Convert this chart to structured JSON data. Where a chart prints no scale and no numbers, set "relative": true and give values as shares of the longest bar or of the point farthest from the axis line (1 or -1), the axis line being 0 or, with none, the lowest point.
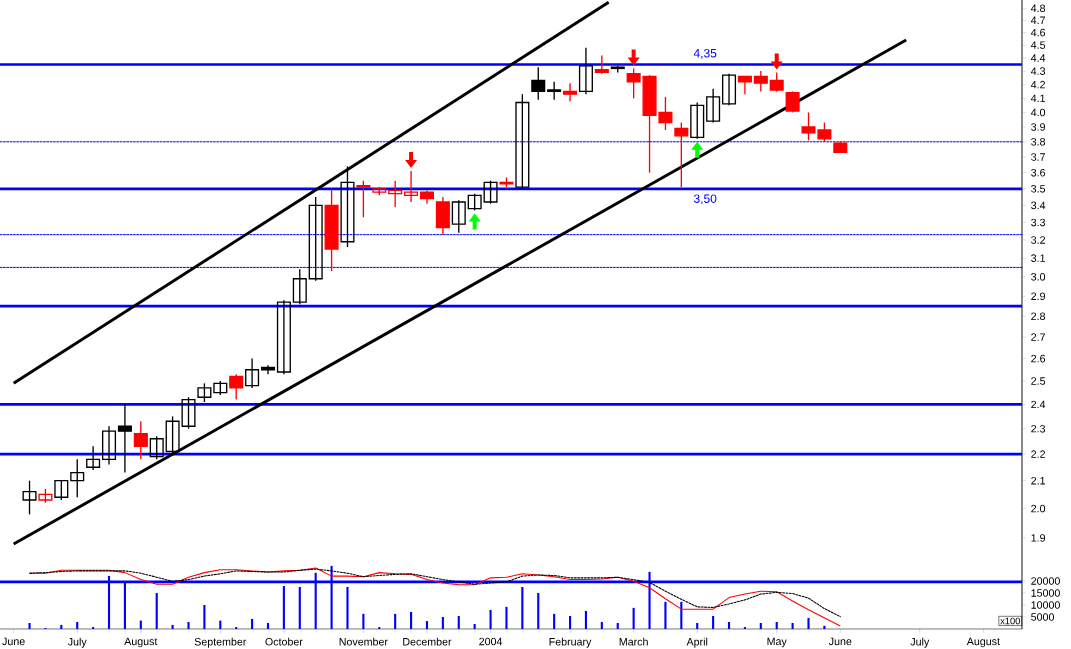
{
  "chart_data": [
    {
      "type": "candlestick",
      "x": [
        "2003-06-13",
        "2003-06-20",
        "2003-06-27",
        "2003-07-04",
        "2003-07-11",
        "2003-07-18",
        "2003-07-25",
        "2003-08-01",
        "2003-08-08",
        "2003-08-15",
        "2003-08-22",
        "2003-08-29",
        "2003-09-05",
        "2003-09-12",
        "2003-09-19",
        "2003-09-26",
        "2003-10-03",
        "2003-10-10",
        "2003-10-17",
        "2003-10-24",
        "2003-10-31",
        "2003-11-07",
        "2003-11-14",
        "2003-11-21",
        "2003-11-28",
        "2003-12-05",
        "2003-12-12",
        "2003-12-19",
        "2003-12-26",
        "2004-01-02",
        "2004-01-09",
        "2004-01-16",
        "2004-01-23",
        "2004-01-30",
        "2004-02-06",
        "2004-02-13",
        "2004-02-20",
        "2004-02-27",
        "2004-03-05",
        "2004-03-12",
        "2004-03-19",
        "2004-03-26",
        "2004-04-02",
        "2004-04-09",
        "2004-04-16",
        "2004-04-23",
        "2004-04-30",
        "2004-05-07",
        "2004-05-14",
        "2004-05-21",
        "2004-05-28",
        "2004-06-04"
      ],
      "ohlc": [
        [
          2.03,
          2.1,
          1.98,
          2.06
        ],
        [
          2.03,
          2.07,
          2.02,
          2.05
        ],
        [
          2.04,
          2.1,
          2.03,
          2.1
        ],
        [
          2.1,
          2.18,
          2.04,
          2.13
        ],
        [
          2.15,
          2.23,
          2.14,
          2.18
        ],
        [
          2.18,
          2.31,
          2.16,
          2.29
        ],
        [
          2.31,
          2.4,
          2.13,
          2.29
        ],
        [
          2.28,
          2.33,
          2.18,
          2.23
        ],
        [
          2.19,
          2.27,
          2.18,
          2.26
        ],
        [
          2.21,
          2.35,
          2.2,
          2.33
        ],
        [
          2.31,
          2.43,
          2.3,
          2.42
        ],
        [
          2.43,
          2.49,
          2.41,
          2.47
        ],
        [
          2.45,
          2.5,
          2.44,
          2.49
        ],
        [
          2.52,
          2.53,
          2.42,
          2.47
        ],
        [
          2.48,
          2.6,
          2.47,
          2.55
        ],
        [
          2.56,
          2.57,
          2.53,
          2.55
        ],
        [
          2.54,
          2.88,
          2.53,
          2.87
        ],
        [
          2.87,
          3.04,
          2.86,
          2.99
        ],
        [
          2.99,
          3.45,
          2.98,
          3.4
        ],
        [
          3.4,
          3.5,
          3.03,
          3.15
        ],
        [
          3.19,
          3.64,
          3.16,
          3.54
        ],
        [
          3.52,
          3.55,
          3.33,
          3.51
        ],
        [
          3.48,
          3.51,
          3.46,
          3.5
        ],
        [
          3.47,
          3.55,
          3.39,
          3.49
        ],
        [
          3.46,
          3.61,
          3.42,
          3.48
        ],
        [
          3.48,
          3.49,
          3.41,
          3.44
        ],
        [
          3.42,
          3.45,
          3.23,
          3.27
        ],
        [
          3.29,
          3.43,
          3.24,
          3.42
        ],
        [
          3.38,
          3.47,
          3.37,
          3.46
        ],
        [
          3.42,
          3.55,
          3.41,
          3.54
        ],
        [
          3.54,
          3.57,
          3.51,
          3.53
        ],
        [
          3.51,
          4.13,
          3.5,
          4.07
        ],
        [
          4.23,
          4.33,
          4.09,
          4.15
        ],
        [
          4.16,
          4.22,
          4.09,
          4.15
        ],
        [
          4.15,
          4.21,
          4.08,
          4.13
        ],
        [
          4.15,
          4.48,
          4.13,
          4.34
        ],
        [
          4.31,
          4.42,
          4.28,
          4.29
        ],
        [
          4.33,
          4.34,
          4.29,
          4.32
        ],
        [
          4.28,
          4.32,
          4.1,
          4.22
        ],
        [
          4.26,
          4.27,
          3.6,
          3.98
        ],
        [
          4.0,
          4.11,
          3.88,
          3.93
        ],
        [
          3.89,
          3.93,
          3.51,
          3.84
        ],
        [
          3.83,
          4.07,
          3.82,
          4.05
        ],
        [
          3.94,
          4.17,
          3.93,
          4.11
        ],
        [
          4.06,
          4.28,
          4.05,
          4.27
        ],
        [
          4.26,
          4.26,
          4.13,
          4.22
        ],
        [
          4.26,
          4.3,
          4.15,
          4.21
        ],
        [
          4.23,
          4.29,
          4.15,
          4.16
        ],
        [
          4.14,
          4.15,
          4.0,
          4.01
        ],
        [
          3.9,
          4.0,
          3.81,
          3.86
        ],
        [
          3.88,
          3.93,
          3.8,
          3.82
        ],
        [
          3.79,
          3.8,
          3.73,
          3.73
        ]
      ],
      "colors": [
        "#000000",
        "#ff0000",
        "#000000",
        "#000000",
        "#000000",
        "#000000",
        "#000000",
        "#ff0000",
        "#000000",
        "#000000",
        "#000000",
        "#000000",
        "#000000",
        "#ff0000",
        "#000000",
        "#000000",
        "#000000",
        "#000000",
        "#000000",
        "#ff0000",
        "#000000",
        "#ff0000",
        "#ff0000",
        "#ff0000",
        "#ff0000",
        "#ff0000",
        "#ff0000",
        "#000000",
        "#000000",
        "#000000",
        "#ff0000",
        "#000000",
        "#000000",
        "#000000",
        "#ff0000",
        "#000000",
        "#ff0000",
        "#000000",
        "#ff0000",
        "#ff0000",
        "#ff0000",
        "#ff0000",
        "#000000",
        "#000000",
        "#000000",
        "#ff0000",
        "#ff0000",
        "#ff0000",
        "#ff0000",
        "#ff0000",
        "#ff0000",
        "#ff0000"
      ],
      "series": [
        {
          "type": "line",
          "color": "#000000",
          "x": [
            "2003-06-06",
            "2004-02-23"
          ],
          "values": [
            2.49,
            4.85
          ]
        },
        {
          "type": "line",
          "color": "#000000",
          "x": [
            "2003-06-06",
            "2004-07-03"
          ],
          "values": [
            1.88,
            4.54
          ]
        },
        {
          "type": "bar",
          "axis": "y2",
          "color": "#0000ff",
          "x": [
            "2003-06-13",
            "2003-06-20",
            "2003-06-27",
            "2003-07-04",
            "2003-07-11",
            "2003-07-18",
            "2003-07-25",
            "2003-08-01",
            "2003-08-08",
            "2003-08-15",
            "2003-08-22",
            "2003-08-29",
            "2003-09-05",
            "2003-09-12",
            "2003-09-19",
            "2003-09-26",
            "2003-10-03",
            "2003-10-10",
            "2003-10-17",
            "2003-10-24",
            "2003-10-31",
            "2003-11-07",
            "2003-11-14",
            "2003-11-21",
            "2003-11-28",
            "2003-12-05",
            "2003-12-12",
            "2003-12-19",
            "2003-12-26",
            "2004-01-02",
            "2004-01-09",
            "2004-01-16",
            "2004-01-23",
            "2004-01-30",
            "2004-02-06",
            "2004-02-13",
            "2004-02-20",
            "2004-02-27",
            "2004-03-05",
            "2004-03-12",
            "2004-03-19",
            "2004-03-26",
            "2004-04-02",
            "2004-04-09",
            "2004-04-16",
            "2004-04-23",
            "2004-04-30",
            "2004-05-07",
            "2004-05-14",
            "2004-05-21",
            "2004-05-28"
          ],
          "values": [
            2500,
            400,
            1700,
            2900,
            800,
            22100,
            19200,
            3500,
            15000,
            1700,
            2900,
            10000,
            3500,
            800,
            4200,
            2500,
            17900,
            17500,
            23400,
            26300,
            17500,
            6300,
            800,
            6300,
            7100,
            3300,
            5000,
            5400,
            2100,
            7900,
            9200,
            17500,
            15000,
            6300,
            5400,
            7500,
            2900,
            2500,
            8800,
            23800,
            11300,
            11300,
            2500,
            5400,
            2900,
            800,
            2500,
            2900,
            2500,
            4600,
            1300
          ]
        }
      ],
      "xlim": [
        "2003-05-31",
        "2004-08-23"
      ],
      "ylim": [
        1.62,
        4.87
      ],
      "log": "y",
      "yticks": [
        1.9,
        {
          "value": 2,
          "label": "2.0"
        },
        2.1,
        2.2,
        2.3,
        2.4,
        2.5,
        2.6,
        2.7,
        2.8,
        2.9,
        {
          "value": 3,
          "label": "3.0"
        },
        3.1,
        3.2,
        3.3,
        3.4,
        3.5,
        3.6,
        3.7,
        3.8,
        3.9,
        {
          "value": 4,
          "label": "4.0"
        },
        4.1,
        4.2,
        4.3,
        4.4,
        4.5,
        4.6,
        4.7,
        4.8
      ],
      "y2lim": [
        0,
        262000
      ],
      "y2ticks": [
        5000,
        10000,
        15000,
        20000
      ],
      "xticks": [
        {
          "value": "2003-06-06",
          "label": "June"
        },
        {
          "value": "2003-07-04",
          "label": "July"
        },
        {
          "value": "2003-08-01",
          "label": "August"
        },
        {
          "value": "2003-09-05",
          "label": "September"
        },
        {
          "value": "2003-10-03",
          "label": "October"
        },
        {
          "value": "2003-11-07",
          "label": "November"
        },
        {
          "value": "2003-12-05",
          "label": "December"
        },
        {
          "value": "2004-01-02",
          "label": "2004"
        },
        {
          "value": "2004-02-06",
          "label": "February"
        },
        {
          "value": "2004-03-05",
          "label": "March"
        },
        {
          "value": "2004-04-02",
          "label": "April"
        },
        {
          "value": "2004-05-07",
          "label": "May"
        },
        {
          "value": "2004-06-04",
          "label": "June"
        },
        {
          "value": "2004-07-09",
          "label": "July"
        },
        {
          "value": "2004-08-06",
          "label": "August"
        }
      ],
      "ref_lines": [
        {
          "axis": "y",
          "value": 4.35,
          "label": "4,35",
          "color": "#0000ff"
        },
        {
          "axis": "y",
          "value": 3.5,
          "label": "3,50",
          "color": "#0000ff"
        },
        {
          "axis": "y",
          "value": 2.85,
          "color": "#0000ff"
        },
        {
          "axis": "y",
          "value": 2.4,
          "color": "#0000ff"
        },
        {
          "axis": "y",
          "value": 2.2,
          "color": "#0000ff"
        },
        {
          "axis": "y",
          "value": 3.8,
          "color": "#0000ff",
          "line_style": "dashed"
        },
        {
          "axis": "y",
          "value": 3.23,
          "color": "#0000ff",
          "line_style": "dashed"
        },
        {
          "axis": "y",
          "value": 3.05,
          "color": "#0000ff",
          "line_style": "dashed"
        },
        {
          "axis": "y2",
          "value": 19600,
          "color": "#0000ff"
        }
      ],
      "annotations": [
        "x100"
      ]
    },
    {
      "type": "line",
      "relative": true,
      "tick_labels": false,
      "categories": [
        null,
        null,
        null,
        null,
        null,
        null,
        null,
        null,
        null,
        null,
        null,
        null,
        null,
        null,
        null,
        null,
        null,
        null,
        null,
        null,
        null,
        null,
        null,
        null,
        null,
        null,
        null,
        null,
        null,
        null,
        null,
        null,
        null,
        null,
        null,
        null,
        null,
        null,
        null,
        null,
        null,
        null,
        null,
        null,
        null,
        null,
        null,
        null,
        null,
        null,
        null,
        null
      ],
      "series": [
        {
          "color": "#ff0000",
          "line_style": "solid",
          "values": [
            0.91,
            0.91,
            0.96,
            0.96,
            0.96,
            0.96,
            0.92,
            0.8,
            0.72,
            0.72,
            0.84,
            0.92,
            0.97,
            0.97,
            0.95,
            0.93,
            0.95,
            0.96,
            1.0,
            0.86,
            0.86,
            0.85,
            0.92,
            0.9,
            0.89,
            0.8,
            0.74,
            0.71,
            0.71,
            0.83,
            0.84,
            0.9,
            0.88,
            0.85,
            0.8,
            0.8,
            0.81,
            0.84,
            0.77,
            0.66,
            0.47,
            0.29,
            0.29,
            0.29,
            0.49,
            0.55,
            0.6,
            0.59,
            0.43,
            0.28,
            0.14,
            0.0
          ]
        },
        {
          "color": "#000000",
          "line_style": "dashed",
          "values": [
            0.91,
            0.92,
            0.94,
            0.95,
            0.95,
            0.95,
            0.95,
            0.91,
            0.84,
            0.77,
            0.8,
            0.86,
            0.9,
            0.95,
            0.94,
            0.93,
            0.93,
            0.96,
            0.98,
            0.95,
            0.91,
            0.85,
            0.87,
            0.89,
            0.9,
            0.85,
            0.8,
            0.76,
            0.72,
            0.74,
            0.76,
            0.86,
            0.88,
            0.87,
            0.83,
            0.83,
            0.83,
            0.84,
            0.8,
            0.75,
            0.6,
            0.46,
            0.33,
            0.32,
            0.38,
            0.45,
            0.55,
            0.58,
            0.56,
            0.48,
            0.3,
            0.16
          ]
        }
      ]
    }
  ]
}
